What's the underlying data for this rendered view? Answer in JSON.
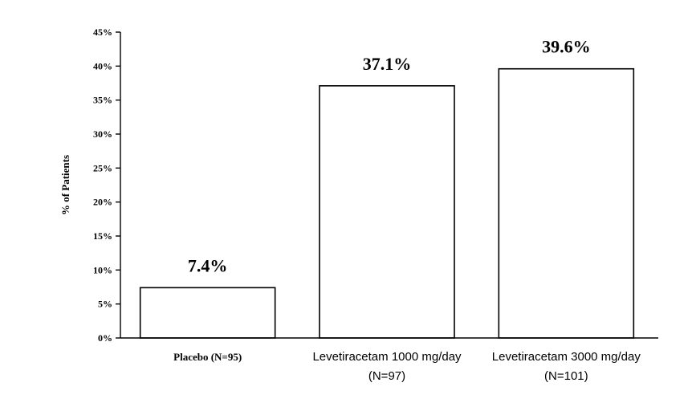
{
  "chart_data": {
    "type": "bar",
    "title": "",
    "xlabel": "",
    "ylabel": "% of Patients",
    "ylim": [
      0,
      45
    ],
    "yticks": [
      "0%",
      "5%",
      "10%",
      "15%",
      "20%",
      "25%",
      "30%",
      "35%",
      "40%",
      "45%"
    ],
    "ytick_values": [
      0,
      5,
      10,
      15,
      20,
      25,
      30,
      35,
      40,
      45
    ],
    "categories": [
      [
        "Placebo  (N=95)"
      ],
      [
        "Levetiracetam 1000 mg/day",
        "(N=97)"
      ],
      [
        "Levetiracetam 3000 mg/day",
        "(N=101)"
      ]
    ],
    "values": [
      7.4,
      37.1,
      39.6
    ],
    "data_labels": [
      "7.4%",
      "37.1%",
      "39.6%"
    ],
    "grid": false,
    "legend": "none",
    "colors": {
      "bar_fill": "#ffffff",
      "bar_stroke": "#000000"
    }
  }
}
